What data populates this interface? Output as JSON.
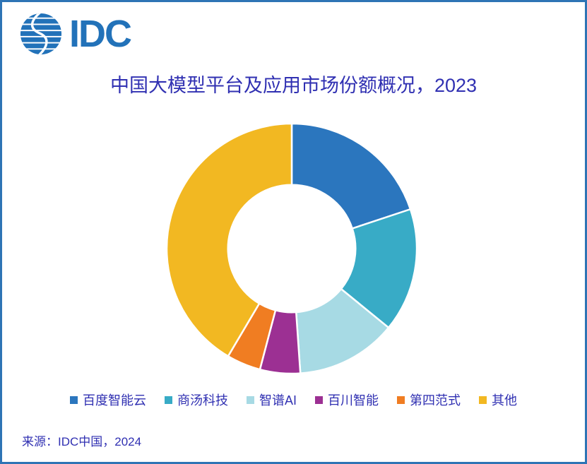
{
  "page": {
    "border_color": "#2E74B5",
    "background_color": "#FFFFFF",
    "text_color": "#3030B2"
  },
  "logo": {
    "text": "IDC",
    "color": "#2272B9",
    "icon": "idc-striped-globe-icon"
  },
  "title": {
    "text": "中国大模型平台及应用市场份额概况，2023"
  },
  "source": {
    "text": "来源：IDC中国，2024"
  },
  "chart_data": {
    "type": "pie",
    "subtype": "donut",
    "title": "中国大模型平台及应用市场份额概况，2023",
    "unit": "percent-market-share",
    "categories": [
      "百度智能云",
      "商汤科技",
      "智谱AI",
      "百川智能",
      "第四范式",
      "其他"
    ],
    "values": [
      19.9,
      16.0,
      13.0,
      5.2,
      4.4,
      41.5
    ],
    "colors": [
      "#2B76BE",
      "#38ABC6",
      "#A7DAE4",
      "#9C3093",
      "#F07D22",
      "#F2B822"
    ],
    "start_angle_deg": 0,
    "direction": "clockwise",
    "inner_radius_ratio": 0.51,
    "segment_gap_color": "#FFFFFF",
    "legend_position": "bottom",
    "data_labels": false
  }
}
